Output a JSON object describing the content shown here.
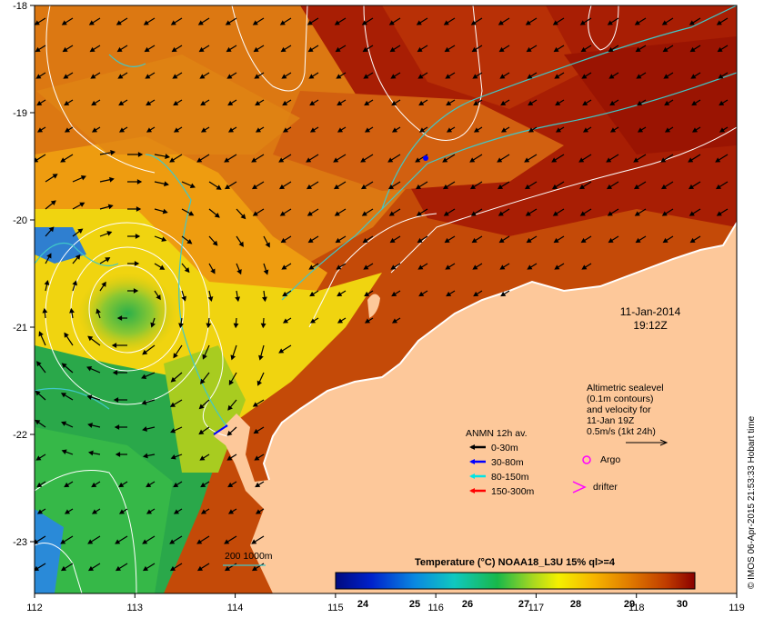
{
  "map": {
    "lon_ticks": [
      "112",
      "113",
      "114",
      "115",
      "116",
      "117",
      "118",
      "119"
    ],
    "lat_ticks": [
      "-18",
      "-19",
      "-20",
      "-21",
      "-22",
      "-23"
    ],
    "date_line1": "11-Jan-2014",
    "date_line2": "19:12Z",
    "altimetry": {
      "line1": "Altimetric sealevel",
      "line2": "(0.1m contours)",
      "line3": "and velocity for",
      "line4": "11-Jan 19Z",
      "line5": "0.5m/s (1kt 24h)"
    },
    "anmn": {
      "title": "ANMN 12h av.",
      "items": [
        {
          "label": "0-30m",
          "color": "#000000"
        },
        {
          "label": "30-80m",
          "color": "#0000ff"
        },
        {
          "label": "80-150m",
          "color": "#00e5e5"
        },
        {
          "label": "150-300m",
          "color": "#ff0000"
        }
      ]
    },
    "argo_label": "Argo",
    "drifter_label": "drifter",
    "marker_color": "#ff00ff",
    "isobath_label": "200  1000m",
    "isobath_color": "#40c8c8",
    "land_color": "#fdc89a",
    "colorbar": {
      "title": "Temperature (°C) NOAA18_L3U 15% ql>=4",
      "ticks": [
        "24",
        "25",
        "26",
        "27",
        "28",
        "29",
        "30"
      ]
    },
    "credit": "© IMOS 06-Apr-2015 21:53:33 Hobart time"
  }
}
